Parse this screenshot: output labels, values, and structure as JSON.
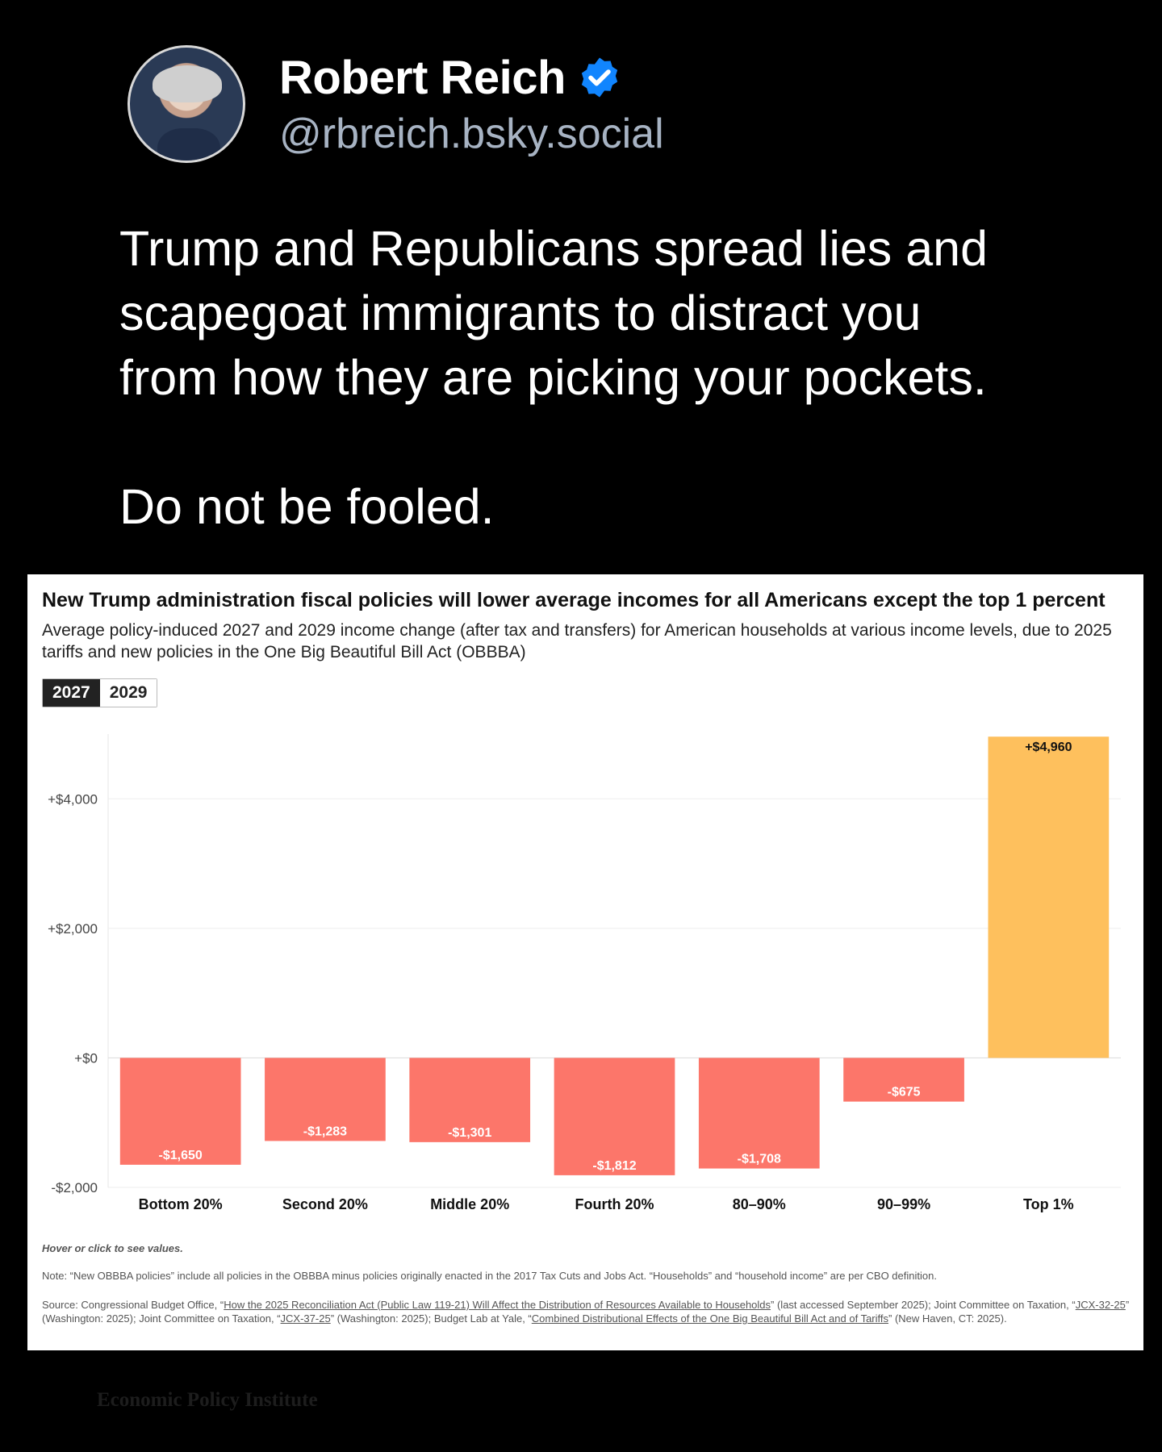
{
  "post": {
    "display_name": "Robert Reich",
    "handle": "@rbreich.bsky.social",
    "text_line1": "Trump and Republicans spread lies and",
    "text_line2": "scapegoat immigrants to distract you",
    "text_line3": "from how they are picking your pockets.",
    "text_line4": "Do not be fooled.",
    "verified_color": "#1185fe",
    "verified_icon": "verified-check-icon",
    "avatar_icon": "avatar-photo"
  },
  "chart_card": {
    "toggle": [
      "2027",
      "2029"
    ],
    "active_year": "2027",
    "hint": "Hover or click to see values.",
    "note": "Note: “New OBBBA policies” include all policies in the OBBBA minus policies originally enacted in the 2017 Tax Cuts and Jobs Act. “Households” and “household income” are per CBO definition.",
    "source_parts": [
      "Source: Congressional Budget Office, “",
      "How the 2025 Reconciliation Act (Public Law 119-21) Will Affect the Distribution of Resources Available to Households",
      "” (last accessed September 2025); Joint Committee on Taxation, “",
      "JCX-32-25",
      "” (Washington: 2025); Joint Committee on Taxation, “",
      "JCX-37-25",
      "” (Washington: 2025); Budget Lab at Yale, “",
      "Combined Distributional Effects of the One Big Beautiful Bill Act and of Tariffs",
      "” (New Haven, CT: 2025)."
    ]
  },
  "chart_data": {
    "type": "bar",
    "title": "New Trump administration fiscal policies will lower average incomes for all Americans except the top 1 percent",
    "subtitle": "Average policy-induced 2027 and 2029 income change (after tax and transfers) for American households at various income levels, due to 2025 tariffs and new policies in the One Big Beautiful Bill Act (OBBBA)",
    "categories": [
      "Bottom 20%",
      "Second 20%",
      "Middle 20%",
      "Fourth 20%",
      "80–90%",
      "90–99%",
      "Top 1%"
    ],
    "values": [
      -1650,
      -1283,
      -1301,
      -1812,
      -1708,
      -675,
      4960
    ],
    "labels": [
      "-$1,650",
      "-$1,283",
      "-$1,301",
      "-$1,812",
      "-$1,708",
      "-$675",
      "+$4,960"
    ],
    "yticks": [
      -2000,
      0,
      2000,
      4000
    ],
    "ytick_labels": [
      "-$2,000",
      "+$0",
      "+$2,000",
      "+$4,000"
    ],
    "ylim": [
      -2000,
      5000
    ],
    "xlabel": "",
    "ylabel": "",
    "colors": {
      "negative": "#fc766a",
      "positive": "#fec05d"
    }
  },
  "watermark": "Economic Policy Institute"
}
